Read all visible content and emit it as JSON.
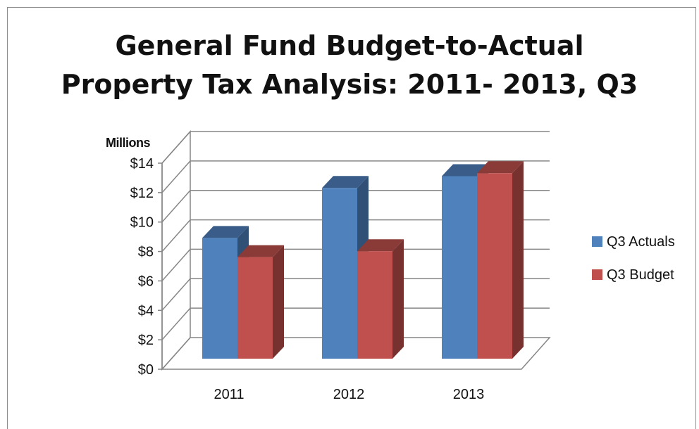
{
  "chart_data": {
    "type": "bar",
    "title": [
      "General Fund Budget-to-Actual",
      "Property Tax Analysis: 2011- 2013, Q3"
    ],
    "ylabel": "Millions",
    "categories": [
      "2011",
      "2012",
      "2013"
    ],
    "series": [
      {
        "name": "Q3 Actuals",
        "values": [
          8.2,
          11.6,
          12.4
        ],
        "color": "#4f81bd"
      },
      {
        "name": "Q3 Budget",
        "values": [
          6.9,
          7.3,
          12.6
        ],
        "color": "#c0504d"
      }
    ],
    "ylim": [
      0,
      14
    ],
    "yticks": [
      "$0",
      "$2",
      "$4",
      "$6",
      "$8",
      "$10",
      "$12",
      "$14"
    ],
    "grid": true,
    "legend_position": "right",
    "style": "3d-clustered-column"
  }
}
